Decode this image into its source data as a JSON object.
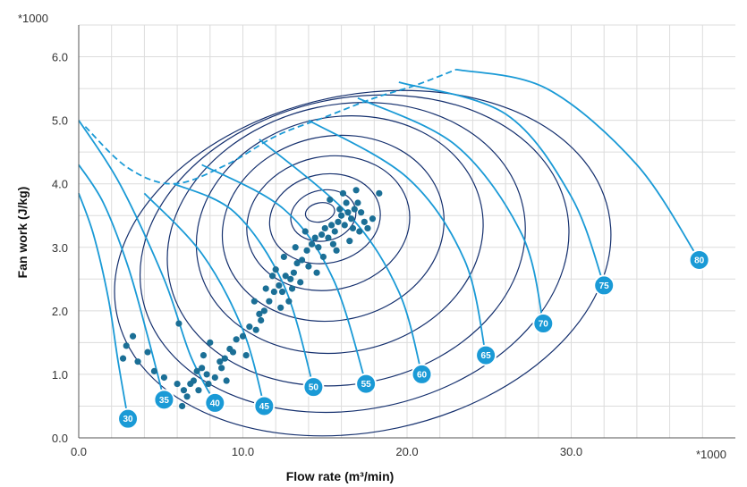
{
  "chart_data": {
    "type": "scatter",
    "title": "",
    "xlabel": "Flow rate (m³/min)",
    "ylabel": "Fan work (J/kg)",
    "x_multiplier": "*1000",
    "y_multiplier": "*1000",
    "xlim": [
      0,
      40
    ],
    "ylim": [
      0,
      6.5
    ],
    "x_ticks": [
      0,
      10,
      20,
      30
    ],
    "x_tick_labels": [
      "0.0",
      "10.0",
      "20.0",
      "30.0"
    ],
    "y_ticks": [
      0,
      1,
      2,
      3,
      4,
      5,
      6
    ],
    "y_tick_labels": [
      "0.0",
      "1.0",
      "2.0",
      "3.0",
      "4.0",
      "5.0",
      "6.0"
    ],
    "grid": true,
    "colors": {
      "operating_points": "#1b6f96",
      "speed_lines": "#1a9ad6",
      "efficiency_contours": "#15306e",
      "badge_fill": "#1a9ad6",
      "grid": "#dcdcdc"
    },
    "speed_lines": [
      {
        "label": "30",
        "points": [
          [
            0,
            3.85
          ],
          [
            0.9,
            3.2
          ],
          [
            1.8,
            2.2
          ],
          [
            2.4,
            1.2
          ],
          [
            3.0,
            0.3
          ]
        ]
      },
      {
        "label": "35",
        "points": [
          [
            0,
            4.3
          ],
          [
            1.5,
            3.7
          ],
          [
            3.0,
            2.7
          ],
          [
            4.2,
            1.6
          ],
          [
            5.2,
            0.6
          ]
        ]
      },
      {
        "label": "40",
        "points": [
          [
            0,
            5.0
          ],
          [
            2.5,
            4.0
          ],
          [
            5.2,
            2.5
          ],
          [
            6.8,
            1.3
          ],
          [
            8.3,
            0.55
          ]
        ]
      },
      {
        "label": "45",
        "points": [
          [
            4.0,
            3.85
          ],
          [
            7.5,
            2.9
          ],
          [
            10.0,
            1.7
          ],
          [
            11.3,
            0.5
          ]
        ]
      },
      {
        "label": "50",
        "points": [
          [
            5.8,
            4.0
          ],
          [
            9.5,
            3.55
          ],
          [
            12.5,
            2.4
          ],
          [
            14.3,
            0.8
          ]
        ]
      },
      {
        "label": "55",
        "points": [
          [
            7.5,
            4.3
          ],
          [
            12.5,
            3.6
          ],
          [
            15.5,
            2.5
          ],
          [
            17.5,
            0.85
          ]
        ]
      },
      {
        "label": "60",
        "points": [
          [
            11.0,
            4.7
          ],
          [
            16.5,
            3.5
          ],
          [
            19.5,
            2.3
          ],
          [
            20.9,
            1.0
          ]
        ]
      },
      {
        "label": "65",
        "points": [
          [
            14.0,
            5.0
          ],
          [
            20.0,
            4.1
          ],
          [
            23.5,
            2.8
          ],
          [
            24.8,
            1.3
          ]
        ]
      },
      {
        "label": "70",
        "points": [
          [
            17.0,
            5.35
          ],
          [
            23.0,
            4.6
          ],
          [
            27.0,
            3.2
          ],
          [
            28.3,
            1.8
          ]
        ]
      },
      {
        "label": "75",
        "points": [
          [
            19.5,
            5.6
          ],
          [
            26.0,
            5.1
          ],
          [
            30.0,
            3.8
          ],
          [
            32.0,
            2.4
          ]
        ]
      },
      {
        "label": "80",
        "points": [
          [
            23.0,
            5.8
          ],
          [
            28.5,
            5.5
          ],
          [
            34.0,
            4.3
          ],
          [
            37.8,
            2.8
          ]
        ]
      }
    ],
    "surge_line": [
      [
        0.4,
        4.9
      ],
      [
        3.0,
        4.25
      ],
      [
        5.8,
        4.0
      ],
      [
        9.0,
        4.3
      ],
      [
        12.0,
        4.75
      ],
      [
        15.0,
        5.05
      ],
      [
        18.0,
        5.35
      ],
      [
        20.5,
        5.55
      ],
      [
        23.0,
        5.8
      ]
    ],
    "efficiency_contours": [
      {
        "cx": 14.7,
        "cy": 3.55,
        "rx": 0.9,
        "ry": 0.15
      },
      {
        "cx": 14.9,
        "cy": 3.5,
        "rx": 2.0,
        "ry": 0.4
      },
      {
        "cx": 15.0,
        "cy": 3.45,
        "rx": 3.4,
        "ry": 0.7
      },
      {
        "cx": 15.2,
        "cy": 3.38,
        "rx": 5.0,
        "ry": 1.05
      },
      {
        "cx": 15.5,
        "cy": 3.3,
        "rx": 6.8,
        "ry": 1.45
      },
      {
        "cx": 15.9,
        "cy": 3.2,
        "rx": 8.8,
        "ry": 1.85
      },
      {
        "cx": 16.3,
        "cy": 3.05,
        "rx": 11.0,
        "ry": 2.2
      },
      {
        "cx": 16.8,
        "cy": 2.9,
        "rx": 13.2,
        "ry": 2.45
      },
      {
        "cx": 17.3,
        "cy": 2.75,
        "rx": 15.3,
        "ry": 2.65
      }
    ],
    "operating_points": [
      [
        2.7,
        1.25
      ],
      [
        2.9,
        1.45
      ],
      [
        3.3,
        1.6
      ],
      [
        3.6,
        1.2
      ],
      [
        4.2,
        1.35
      ],
      [
        4.6,
        1.05
      ],
      [
        5.2,
        0.95
      ],
      [
        6.0,
        0.85
      ],
      [
        6.4,
        0.75
      ],
      [
        6.8,
        0.85
      ],
      [
        7.0,
        0.9
      ],
      [
        7.2,
        1.05
      ],
      [
        7.5,
        1.1
      ],
      [
        7.8,
        1.0
      ],
      [
        6.6,
        0.65
      ],
      [
        6.3,
        0.5
      ],
      [
        7.3,
        0.75
      ],
      [
        7.9,
        0.85
      ],
      [
        8.3,
        0.95
      ],
      [
        8.7,
        1.1
      ],
      [
        8.9,
        1.25
      ],
      [
        9.2,
        1.4
      ],
      [
        9.6,
        1.55
      ],
      [
        10.0,
        1.6
      ],
      [
        10.4,
        1.75
      ],
      [
        10.8,
        1.7
      ],
      [
        11.1,
        1.85
      ],
      [
        11.3,
        2.0
      ],
      [
        11.6,
        2.15
      ],
      [
        11.9,
        2.3
      ],
      [
        12.2,
        2.4
      ],
      [
        12.4,
        2.3
      ],
      [
        12.6,
        2.55
      ],
      [
        12.9,
        2.5
      ],
      [
        13.1,
        2.6
      ],
      [
        13.3,
        2.75
      ],
      [
        13.6,
        2.8
      ],
      [
        13.9,
        2.95
      ],
      [
        14.2,
        3.05
      ],
      [
        14.4,
        3.15
      ],
      [
        14.6,
        3.0
      ],
      [
        14.8,
        3.2
      ],
      [
        15.0,
        3.3
      ],
      [
        15.2,
        3.15
      ],
      [
        15.4,
        3.35
      ],
      [
        15.6,
        3.25
      ],
      [
        15.8,
        3.4
      ],
      [
        16.0,
        3.5
      ],
      [
        16.2,
        3.35
      ],
      [
        16.4,
        3.55
      ],
      [
        16.6,
        3.45
      ],
      [
        16.8,
        3.6
      ],
      [
        17.0,
        3.7
      ],
      [
        17.2,
        3.55
      ],
      [
        17.4,
        3.4
      ],
      [
        17.6,
        3.3
      ],
      [
        15.3,
        3.75
      ],
      [
        16.1,
        3.85
      ],
      [
        16.9,
        3.9
      ],
      [
        18.3,
        3.85
      ],
      [
        17.9,
        3.45
      ],
      [
        12.0,
        2.65
      ],
      [
        11.4,
        2.35
      ],
      [
        10.7,
        2.15
      ],
      [
        8.0,
        1.5
      ],
      [
        6.1,
        1.8
      ],
      [
        12.8,
        2.15
      ],
      [
        13.5,
        2.45
      ],
      [
        14.0,
        2.7
      ],
      [
        14.9,
        2.85
      ],
      [
        15.7,
        2.95
      ],
      [
        16.5,
        3.1
      ],
      [
        15.9,
        3.6
      ],
      [
        16.7,
        3.3
      ],
      [
        13.8,
        3.25
      ],
      [
        13.2,
        3.0
      ],
      [
        12.5,
        2.85
      ],
      [
        11.8,
        2.55
      ],
      [
        9.4,
        1.35
      ],
      [
        8.6,
        1.2
      ],
      [
        7.6,
        1.3
      ],
      [
        9.0,
        0.9
      ],
      [
        10.2,
        1.3
      ],
      [
        14.5,
        2.6
      ],
      [
        15.5,
        3.05
      ],
      [
        16.3,
        3.7
      ],
      [
        17.1,
        3.25
      ],
      [
        13.0,
        2.35
      ],
      [
        12.3,
        2.05
      ],
      [
        11.0,
        1.95
      ]
    ]
  }
}
